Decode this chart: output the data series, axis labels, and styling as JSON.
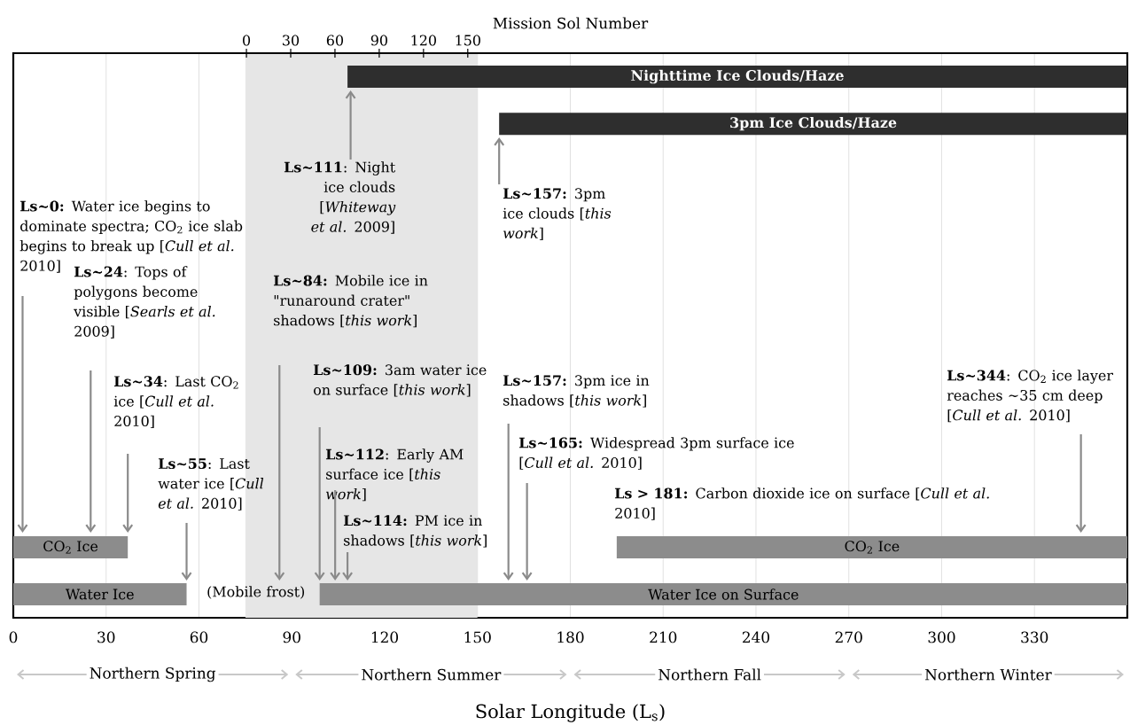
{
  "chart_data": {
    "type": "bar",
    "orientation": "horizontal",
    "xlabel": "Solar Longitude (L$_{s}$)",
    "x2label": "Mission Sol Number",
    "categories": [
      null,
      null,
      null,
      null,
      null,
      null,
      null,
      null,
      null,
      null,
      null,
      null
    ],
    "series": [
      {
        "name": "Nighttime Ice Clouds/Haze",
        "color": "#2e2e2e",
        "base": [
          108,
          null,
          null,
          null,
          null,
          null,
          null,
          null,
          null,
          null,
          null,
          null
        ],
        "values": [
          252,
          null,
          null,
          null,
          null,
          null,
          null,
          null,
          null,
          null,
          null,
          null
        ]
      },
      {
        "name": "3pm Ice Clouds/Haze",
        "color": "#2e2e2e",
        "base": [
          null,
          157,
          null,
          null,
          null,
          null,
          null,
          null,
          null,
          null,
          null,
          null
        ],
        "values": [
          null,
          203,
          null,
          null,
          null,
          null,
          null,
          null,
          null,
          null,
          null,
          null
        ]
      },
      {
        "name": "CO$_{2}$ Ice",
        "color": "#8c8c8c",
        "base": [
          null,
          null,
          null,
          null,
          null,
          null,
          null,
          null,
          null,
          null,
          0,
          null
        ],
        "values": [
          null,
          null,
          null,
          null,
          null,
          null,
          null,
          null,
          null,
          null,
          37,
          null
        ]
      },
      {
        "name": "CO$_{2}$ Ice",
        "color": "#8c8c8c",
        "base": [
          null,
          null,
          null,
          null,
          null,
          null,
          null,
          null,
          null,
          null,
          195,
          null
        ],
        "values": [
          null,
          null,
          null,
          null,
          null,
          null,
          null,
          null,
          null,
          null,
          165,
          null
        ]
      },
      {
        "name": "Water Ice",
        "color": "#8c8c8c",
        "base": [
          null,
          null,
          null,
          null,
          null,
          null,
          null,
          null,
          null,
          null,
          null,
          0
        ],
        "values": [
          null,
          null,
          null,
          null,
          null,
          null,
          null,
          null,
          null,
          null,
          null,
          56
        ]
      },
      {
        "name": "Water Ice on Surface",
        "color": "#8c8c8c",
        "base": [
          null,
          null,
          null,
          null,
          null,
          null,
          null,
          null,
          null,
          null,
          null,
          99
        ],
        "values": [
          null,
          null,
          null,
          null,
          null,
          null,
          null,
          null,
          null,
          null,
          null,
          261
        ]
      }
    ],
    "xlim": [
      0,
      360
    ],
    "xticks": [
      0,
      30,
      60,
      90,
      120,
      150,
      180,
      210,
      240,
      270,
      300,
      330
    ],
    "x2lim": [
      -158,
      597
    ],
    "x2ticks": [
      0,
      30,
      60,
      90,
      120,
      150
    ],
    "grid": "x",
    "bands": [
      {
        "axis": "x",
        "from": 75,
        "to": 150,
        "color": "#e6e6e6"
      }
    ],
    "annotations": [
      "**Ls~0:** Water ice begins to dominate spectra; CO$_{2}$ ice slab begins to break up [*Cull et al.* 2010]",
      "**Ls~24**: Tops of polygons become visible [*Searls et al.* 2009]",
      "**Ls~34**: Last CO$_{2}$ ice [*Cull et al.* 2010]",
      "**Ls~55**: Last water ice [*Cull et al.* 2010]",
      "**Ls~111**: Night ice clouds [*Whiteway et al.* 2009]",
      "**Ls~157:** 3pm ice clouds [*this work*]",
      "**Ls~84:** Mobile ice in \"runaround crater\" shadows [*this work*]",
      "**Ls~109:** 3am water ice on surface [*this work*]",
      "**Ls~112**: Early AM surface ice [*this work*]",
      "**Ls~114:** PM ice in shadows [*this work*]",
      "**Ls~157:** 3pm ice in shadows [*this work*]",
      "**Ls~165:** Widespread 3pm surface ice [*Cull et al.* 2010]",
      "**Ls > 181:** Carbon dioxide ice on surface [*Cull et al.* 2010]",
      "**Ls~344**: CO$_{2}$ ice layer reaches ~35 cm deep [*Cull et al.* 2010]",
      "(Mobile frost)",
      "Northern Spring",
      "Northern Summer",
      "Northern Fall",
      "Northern Winter"
    ]
  }
}
